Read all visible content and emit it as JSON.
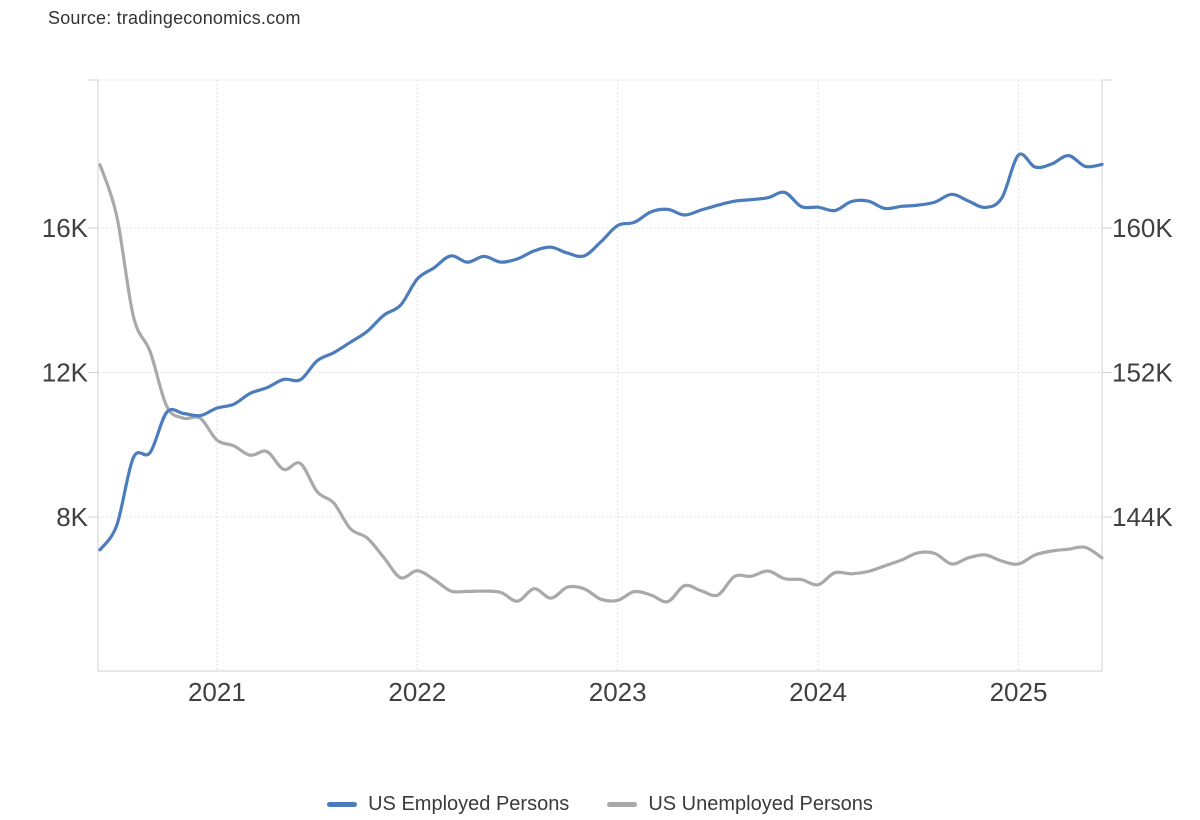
{
  "source": "Source: tradingeconomics.com",
  "colors": {
    "employed_line": "#4d7cbc",
    "unemployed_line": "#a9a9a9",
    "axis_line": "#d0d0d0",
    "grid_dotted": "#d9d9d9",
    "tick_label": "#404040",
    "source_text": "#333333",
    "legend_text": "#3a3a3a",
    "background": "#ffffff"
  },
  "chart_data": {
    "type": "line",
    "title": "",
    "frequency": "monthly",
    "start_month": "2020-06",
    "end_month": "2025-06",
    "x_tick_labels": [
      "2021",
      "2022",
      "2023",
      "2024",
      "2025"
    ],
    "left_axis": {
      "tick_labels": [
        "16K",
        "12K",
        "8K"
      ],
      "tick_values": [
        16000,
        12000,
        8000
      ],
      "approx_range": [
        4300,
        20100
      ],
      "series": "US Unemployed Persons"
    },
    "right_axis": {
      "tick_labels": [
        "160K",
        "152K",
        "144K"
      ],
      "tick_values": [
        160000,
        152000,
        144000
      ],
      "approx_range": [
        135400,
        168300
      ],
      "series": "US Employed Persons"
    },
    "grid": "dotted",
    "legend_position": "bottom",
    "units": "thousands of persons",
    "series": [
      {
        "name": "US Employed Persons",
        "axis": "right",
        "color": "#4d7cbc",
        "values": [
          142182,
          143532,
          147288,
          147563,
          149804,
          149732,
          149613,
          150031,
          150239,
          150848,
          151160,
          151620,
          151602,
          152645,
          153097,
          153680,
          154277,
          155175,
          155732,
          157174,
          157797,
          158458,
          158105,
          158426,
          158111,
          158290,
          158732,
          158936,
          158608,
          158458,
          159244,
          160138,
          160315,
          160892,
          161031,
          160721,
          160994,
          161262,
          161484,
          161570,
          161676,
          161969,
          161183,
          161152,
          160968,
          161466,
          161491,
          161083,
          161199,
          161266,
          161434,
          161864,
          161496,
          161141,
          161661,
          164040,
          163370,
          163550,
          164010,
          163410,
          163520
        ]
      },
      {
        "name": "US Unemployed Persons",
        "axis": "left",
        "color": "#a9a9a9",
        "values": [
          17750,
          16338,
          13550,
          12580,
          11061,
          10735,
          10736,
          10130,
          9972,
          9710,
          9812,
          9316,
          9484,
          8702,
          8384,
          7674,
          7419,
          6877,
          6319,
          6513,
          6270,
          5952,
          5941,
          5950,
          5912,
          5669,
          6014,
          5753,
          6059,
          6011,
          5722,
          5694,
          5936,
          5838,
          5657,
          6097,
          5957,
          5841,
          6355,
          6360,
          6506,
          6291,
          6268,
          6124,
          6458,
          6429,
          6492,
          6649,
          6811,
          7010,
          6990,
          6700,
          6870,
          6950,
          6780,
          6700,
          6950,
          7060,
          7110,
          7160,
          6870
        ]
      }
    ]
  },
  "legend": {
    "items": [
      "US Employed Persons",
      "US Unemployed Persons"
    ]
  }
}
